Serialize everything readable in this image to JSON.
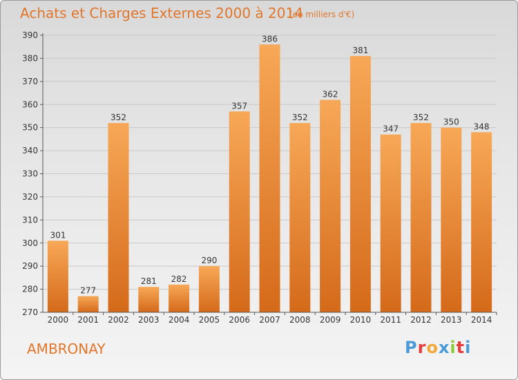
{
  "header": {
    "title": "Achats et Charges Externes 2000 à 2014",
    "unit": "(en milliers d'€)"
  },
  "footer": {
    "commune": "AMBRONAY",
    "logo_letters": [
      "P",
      "r",
      "o",
      "x",
      "i",
      "t",
      "i"
    ],
    "logo_colors": [
      "#4a9ad8",
      "#e63c3c",
      "#f2a83a",
      "#4a9ad8",
      "#8cc83c",
      "#e63c3c",
      "#4a9ad8"
    ]
  },
  "colors": {
    "bar_top": "#f7a857",
    "bar_bottom": "#d46a1a",
    "label": "#333333",
    "axis": "#555555",
    "grid": "#c8c8c8"
  },
  "chart_data": {
    "type": "bar",
    "title": "Achats et Charges Externes 2000 à 2014",
    "categories": [
      "2000",
      "2001",
      "2002",
      "2003",
      "2004",
      "2005",
      "2006",
      "2007",
      "2008",
      "2009",
      "2010",
      "2011",
      "2012",
      "2013",
      "2014"
    ],
    "values": [
      301,
      277,
      352,
      281,
      282,
      290,
      357,
      386,
      352,
      362,
      381,
      347,
      352,
      350,
      348
    ],
    "ylim": [
      270,
      390
    ],
    "yticks": [
      270,
      280,
      290,
      300,
      310,
      320,
      330,
      340,
      350,
      360,
      370,
      380,
      390
    ],
    "grid": true
  }
}
